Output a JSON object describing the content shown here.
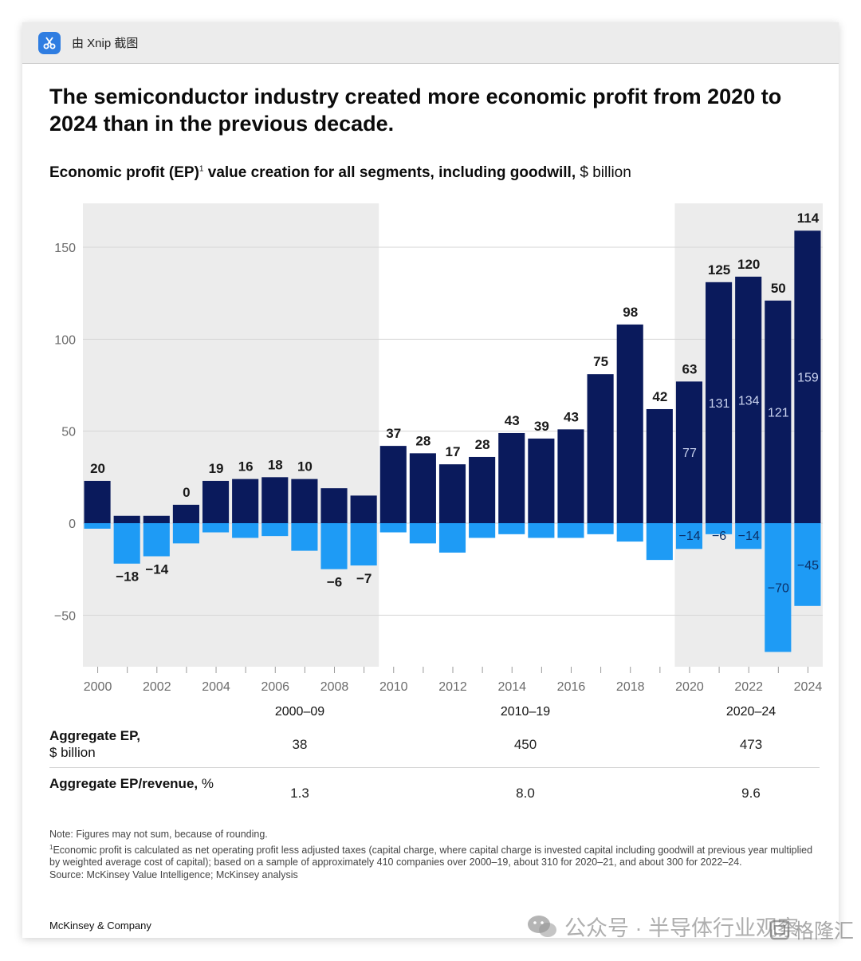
{
  "window": {
    "caption": "由 Xnip 截图",
    "app_icon": "scissors-icon",
    "accent": "#2f7de1"
  },
  "headline": "The semiconductor industry created more economic profit from 2020 to 2024 than in the previous decade.",
  "subtitle": {
    "bold": "Economic profit (EP)",
    "footnote_mark": "1",
    "bold_rest": " value creation for all segments, including goodwill,",
    "unit": " $ billion"
  },
  "chart_data": {
    "type": "bar",
    "stacked": true,
    "title": "Economic profit (EP) value creation for all segments, including goodwill, $ billion",
    "x": [
      2000,
      2001,
      2002,
      2003,
      2004,
      2005,
      2006,
      2007,
      2008,
      2009,
      2010,
      2011,
      2012,
      2013,
      2014,
      2015,
      2016,
      2017,
      2018,
      2019,
      2020,
      2021,
      2022,
      2023,
      2024
    ],
    "tick_labels": [
      "2000",
      "2002",
      "2004",
      "2006",
      "2008",
      "2010",
      "2012",
      "2014",
      "2016",
      "2018",
      "2020",
      "2022",
      "2024"
    ],
    "ylim": [
      -78,
      175
    ],
    "y_ticks": [
      150,
      100,
      50,
      0,
      -50
    ],
    "y_tick_labels": [
      "150",
      "100",
      "50",
      "0",
      "−50"
    ],
    "series": [
      {
        "name": "Positive EP",
        "color": "#0a1a5c",
        "values": [
          23,
          4,
          4,
          10,
          23,
          24,
          25,
          24,
          19,
          15,
          42,
          38,
          32,
          36,
          49,
          46,
          51,
          81,
          108,
          62,
          77,
          131,
          134,
          121,
          159
        ]
      },
      {
        "name": "Negative EP",
        "color": "#1e9bf5",
        "values": [
          -3,
          -22,
          -18,
          -11,
          -5,
          -8,
          -7,
          -15,
          -25,
          -23,
          -5,
          -11,
          -16,
          -8,
          -6,
          -8,
          -8,
          -6,
          -10,
          -20,
          -14,
          -6,
          -14,
          -70,
          -45
        ]
      }
    ],
    "net_labels": [
      "20",
      "−18",
      "−14",
      "0",
      "19",
      "16",
      "18",
      "10",
      "−6",
      "−7",
      "37",
      "28",
      "17",
      "28",
      "43",
      "39",
      "43",
      "75",
      "98",
      "42",
      "63",
      "125",
      "120",
      "50",
      "114"
    ],
    "inner_labels": [
      {
        "year": 2020,
        "pos": "77",
        "neg": "−14"
      },
      {
        "year": 2021,
        "pos": "131",
        "neg": "−6"
      },
      {
        "year": 2022,
        "pos": "134",
        "neg": "−14"
      },
      {
        "year": 2023,
        "pos": "121",
        "neg": "−70"
      },
      {
        "year": 2024,
        "pos": "159",
        "neg": "−45"
      }
    ],
    "shaded_periods": [
      [
        2000,
        2009
      ],
      [
        2020,
        2024
      ]
    ],
    "colors": {
      "positive": "#0a1a5c",
      "negative": "#1e9bf5",
      "shade": "#ececec",
      "grid": "#d6d6d6",
      "axis_text": "#6b6b6b"
    }
  },
  "summary": {
    "periods": [
      "2000–09",
      "2010–19",
      "2020–24"
    ],
    "rows": [
      {
        "label_bold": "Aggregate EP,",
        "label_rest": "$ billion",
        "values": [
          "38",
          "450",
          "473"
        ]
      },
      {
        "label_bold": "Aggregate EP/revenue,",
        "label_rest": " %",
        "values": [
          "1.3",
          "8.0",
          "9.6"
        ]
      }
    ]
  },
  "notes": {
    "note": "Note: Figures may not sum, because of rounding.",
    "footnote_mark": "1",
    "footnote": "Economic profit is calculated as net operating profit less adjusted taxes (capital charge, where capital charge is invested capital including goodwill at previous year multiplied by weighted average cost of capital); based on a sample of approximately 410 companies over 2000–19, about 310 for 2020–21, and about 300 for 2022–24.",
    "source": "Source: McKinsey Value Intelligence; McKinsey analysis"
  },
  "brand": "McKinsey & Company",
  "watermarks": {
    "wechat": "公众号 · 半导体行业观察",
    "wechat_icon": "wechat-icon",
    "gelonghui": "格隆汇",
    "gelonghui_icon": "gelonghui-logo-icon"
  }
}
